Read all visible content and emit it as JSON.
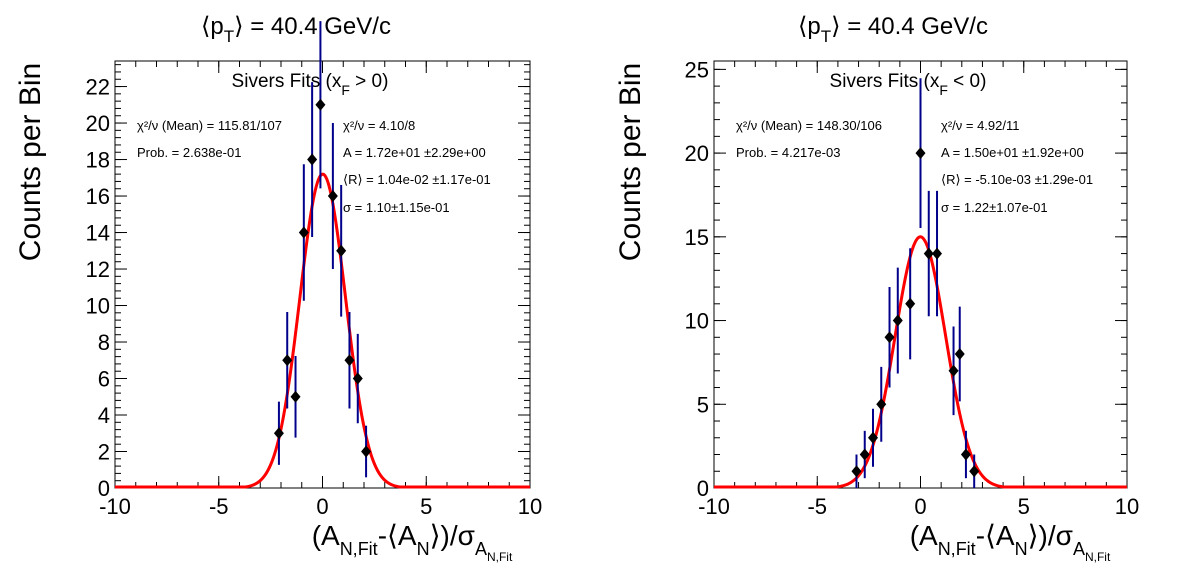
{
  "colors": {
    "fit": "#ff0000",
    "errorbar": "#00008b",
    "marker": "#000000",
    "axis": "#000000"
  },
  "chart_data": [
    {
      "type": "scatter",
      "title": {
        "pre": "⟨p",
        "sub": "T",
        "post": "⟩ = 40.4 GeV/c"
      },
      "subtitle": {
        "pre": "Sivers Fits (x",
        "sub": "F",
        "post": " > 0)"
      },
      "xlabel": {
        "pre": "(A",
        "sub1": "N,Fit",
        "mid1": "-⟨A",
        "sub2": "N",
        "mid2": "⟩)/σ",
        "sub3": "A",
        "subsub": "N,Fit"
      },
      "ylabel": "Counts per Bin",
      "xlim": [
        -10,
        10
      ],
      "ylim": [
        0,
        23.4
      ],
      "xticks": [
        -10,
        -5,
        0,
        5,
        10
      ],
      "xtick_labels": [
        "-10",
        "-5",
        "0",
        "5",
        "10"
      ],
      "yticks": [
        0,
        2,
        4,
        6,
        8,
        10,
        12,
        14,
        16,
        18,
        20,
        22
      ],
      "ytick_labels": [
        "0",
        "2",
        "4",
        "6",
        "8",
        "10",
        "12",
        "14",
        "16",
        "18",
        "20",
        "22"
      ],
      "stats": {
        "left": [
          "χ²/ν (Mean) = 115.81/107",
          "Prob. = 2.638e-01"
        ],
        "right": [
          "χ²/ν = 4.10/8",
          "A = 1.72e+01 ±2.29e+00",
          "⟨R⟩ = 1.04e-02 ±1.17e-01",
          "σ = 1.10±1.15e-01"
        ]
      },
      "points": [
        {
          "x": -2.1,
          "y": 3
        },
        {
          "x": -1.7,
          "y": 7
        },
        {
          "x": -1.3,
          "y": 5
        },
        {
          "x": -0.9,
          "y": 14
        },
        {
          "x": -0.5,
          "y": 18
        },
        {
          "x": -0.1,
          "y": 21
        },
        {
          "x": 0.5,
          "y": 16
        },
        {
          "x": 0.9,
          "y": 13
        },
        {
          "x": 1.3,
          "y": 7
        },
        {
          "x": 1.7,
          "y": 6
        },
        {
          "x": 2.1,
          "y": 2
        }
      ],
      "fit": {
        "A": 17.2,
        "mean": 0.0104,
        "sigma": 1.1
      }
    },
    {
      "type": "scatter",
      "title": {
        "pre": "⟨p",
        "sub": "T",
        "post": "⟩ = 40.4 GeV/c"
      },
      "subtitle": {
        "pre": "Sivers Fits (x",
        "sub": "F",
        "post": " < 0)"
      },
      "xlabel": {
        "pre": "(A",
        "sub1": "N,Fit",
        "mid1": "-⟨A",
        "sub2": "N",
        "mid2": "⟩)/σ",
        "sub3": "A",
        "subsub": "N,Fit"
      },
      "ylabel": "Counts per Bin",
      "xlim": [
        -10,
        10
      ],
      "ylim": [
        0,
        25.5
      ],
      "xticks": [
        -10,
        -5,
        0,
        5,
        10
      ],
      "xtick_labels": [
        "-10",
        "-5",
        "0",
        "5",
        "10"
      ],
      "yticks": [
        0,
        5,
        10,
        15,
        20,
        25
      ],
      "ytick_labels": [
        "0",
        "5",
        "10",
        "15",
        "20",
        "25"
      ],
      "stats": {
        "left": [
          "χ²/ν (Mean) = 148.30/106",
          "Prob. = 4.217e-03"
        ],
        "right": [
          "χ²/ν = 4.92/11",
          "A = 1.50e+01 ±1.92e+00",
          "⟨R⟩ = -5.10e-03 ±1.29e-01",
          "σ = 1.22±1.07e-01"
        ]
      },
      "points": [
        {
          "x": -3.1,
          "y": 1
        },
        {
          "x": -2.7,
          "y": 2
        },
        {
          "x": -2.3,
          "y": 3
        },
        {
          "x": -1.9,
          "y": 5
        },
        {
          "x": -1.5,
          "y": 9
        },
        {
          "x": -1.1,
          "y": 10
        },
        {
          "x": -0.5,
          "y": 11
        },
        {
          "x": 0.0,
          "y": 20
        },
        {
          "x": 0.4,
          "y": 14
        },
        {
          "x": 0.8,
          "y": 14
        },
        {
          "x": 1.6,
          "y": 7
        },
        {
          "x": 1.9,
          "y": 8
        },
        {
          "x": 2.2,
          "y": 2
        },
        {
          "x": 2.6,
          "y": 1
        }
      ],
      "fit": {
        "A": 15.0,
        "mean": -0.0051,
        "sigma": 1.22
      }
    }
  ]
}
